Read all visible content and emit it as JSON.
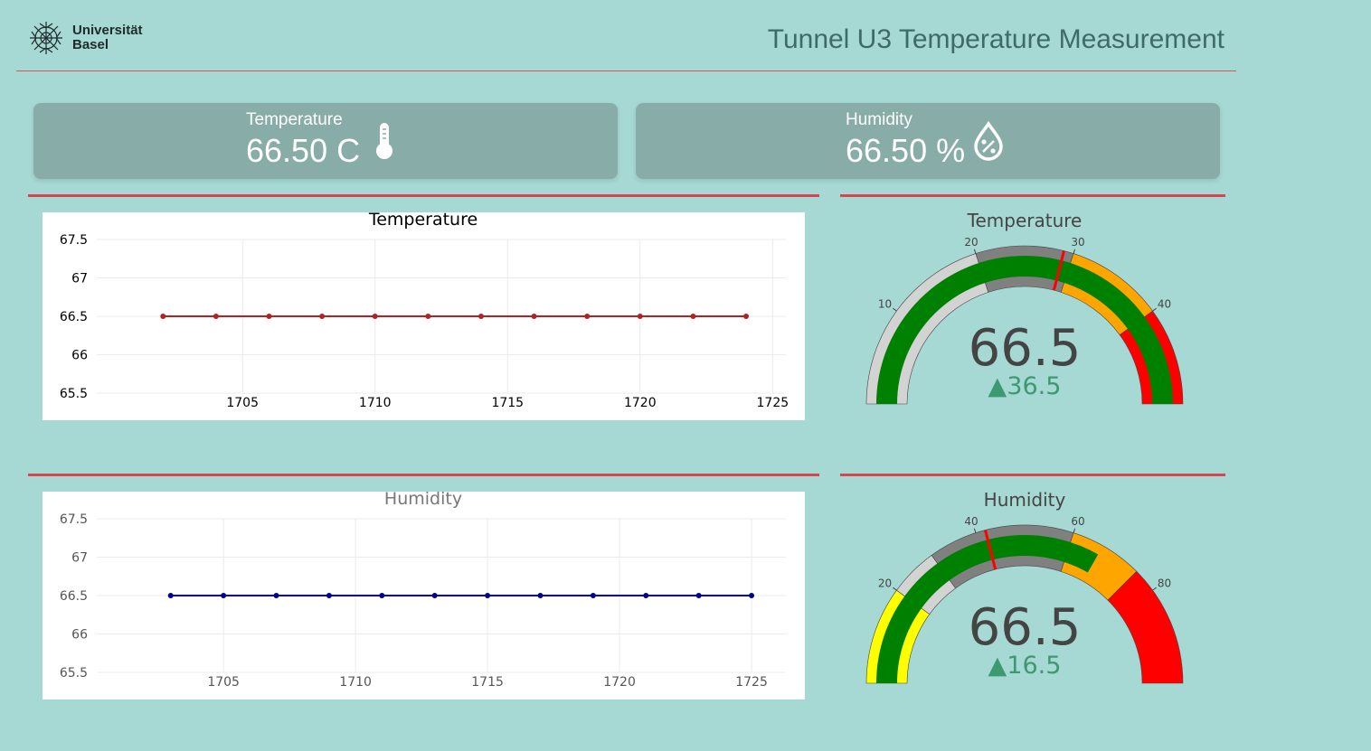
{
  "header": {
    "logo_line1": "Universität",
    "logo_line2": "Basel",
    "title": "Tunnel U3 Temperature Measurement"
  },
  "cards": {
    "temperature": {
      "label": "Temperature",
      "value": "66.50 C",
      "icon": "thermometer-icon"
    },
    "humidity": {
      "label": "Humidity",
      "value": "66.50 %",
      "icon": "humidity-drop-icon"
    }
  },
  "colors": {
    "background": "#a6d9d4",
    "card": "#88ada8",
    "accent_rule": "#d64550",
    "temp_line": "#b22222",
    "hum_line": "#00008b",
    "gauge_green": "#008000",
    "gauge_orange": "#ffa500",
    "gauge_red": "#ff0000",
    "gauge_yellow": "#ffff00",
    "gauge_gray": "#808080",
    "gauge_lightgray": "#d3d3d3",
    "delta_up": "#3d9970"
  },
  "chart_data": [
    {
      "type": "line",
      "title": "Temperature",
      "x": [
        1702,
        1704,
        1706,
        1708,
        1710,
        1712,
        1714,
        1716,
        1718,
        1720,
        1722,
        1724
      ],
      "series": [
        {
          "values": [
            66.5,
            66.5,
            66.5,
            66.5,
            66.5,
            66.5,
            66.5,
            66.5,
            66.5,
            66.5,
            66.5,
            66.5
          ]
        }
      ],
      "xlim": [
        1699.5,
        1725.5
      ],
      "ylim": [
        65.5,
        67.5
      ],
      "xticks": [
        1705,
        1710,
        1715,
        1720,
        1725
      ],
      "yticks": [
        65.5,
        66,
        66.5,
        67,
        67.5
      ],
      "grid": true
    },
    {
      "type": "line",
      "title": "Humidity",
      "x": [
        1703,
        1705,
        1707,
        1709,
        1711,
        1713,
        1715,
        1717,
        1719,
        1721,
        1723,
        1725
      ],
      "series": [
        {
          "values": [
            66.5,
            66.5,
            66.5,
            66.5,
            66.5,
            66.5,
            66.5,
            66.5,
            66.5,
            66.5,
            66.5,
            66.5
          ]
        }
      ],
      "xlim": [
        1700.2,
        1726.3
      ],
      "ylim": [
        65.5,
        67.5
      ],
      "xticks": [
        1705,
        1710,
        1715,
        1720,
        1725
      ],
      "yticks": [
        65.5,
        66,
        66.5,
        67,
        67.5
      ],
      "grid": true
    },
    {
      "type": "gauge",
      "title": "Temperature",
      "value": 66.5,
      "delta": "▲36.5",
      "reference": 30,
      "range": [
        0,
        50
      ],
      "ticks": [
        10,
        20,
        30,
        40
      ],
      "steps": [
        {
          "from": 0,
          "to": 20,
          "color": "#d3d3d3"
        },
        {
          "from": 20,
          "to": 30,
          "color": "#808080"
        },
        {
          "from": 30,
          "to": 40,
          "color": "#ffa500"
        },
        {
          "from": 40,
          "to": 50,
          "color": "#ff0000"
        }
      ],
      "bar_color": "#008000",
      "threshold": 29
    },
    {
      "type": "gauge",
      "title": "Humidity",
      "value": 66.5,
      "delta": "▲16.5",
      "reference": 50,
      "range": [
        0,
        100
      ],
      "ticks": [
        20,
        40,
        60,
        80
      ],
      "steps": [
        {
          "from": 0,
          "to": 20,
          "color": "#ffff00"
        },
        {
          "from": 20,
          "to": 30,
          "color": "#d3d3d3"
        },
        {
          "from": 30,
          "to": 60,
          "color": "#808080"
        },
        {
          "from": 60,
          "to": 75,
          "color": "#ffa500"
        },
        {
          "from": 75,
          "to": 100,
          "color": "#ff0000"
        }
      ],
      "bar_color": "#008000",
      "threshold": 42
    }
  ]
}
